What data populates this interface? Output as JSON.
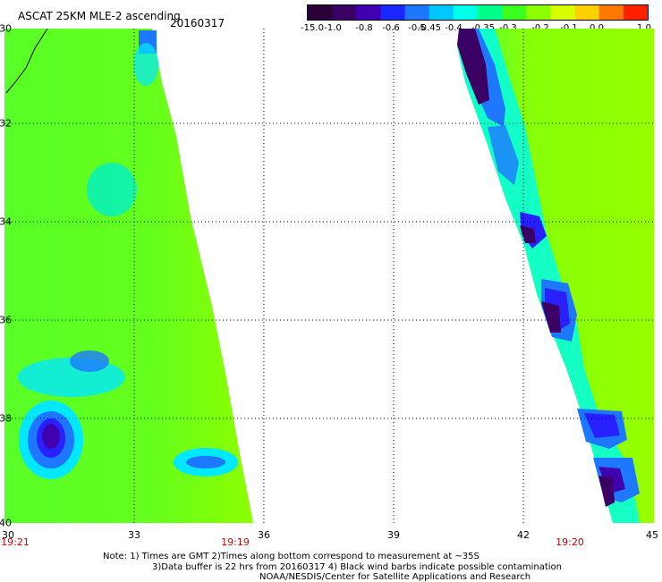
{
  "header": {
    "title": "ASCAT 25KM MLE-2 ascending",
    "date": "20160317"
  },
  "colorbar": {
    "labels": [
      "-15.0",
      "-1.0",
      "-0.8",
      "-0.6",
      "-0.5",
      "-0.45",
      "-0.4",
      "-0.35",
      "-0.3",
      "-0.2",
      "-0.1",
      "0.0",
      "1.0"
    ],
    "colors": [
      "#2a0038",
      "#3a0064",
      "#4000b0",
      "#1a28ff",
      "#1e78ff",
      "#00c8ff",
      "#00ffe8",
      "#00ff8a",
      "#3cff20",
      "#8cff00",
      "#d8ff00",
      "#ffd000",
      "#ff7800",
      "#ff2000"
    ]
  },
  "axes": {
    "y_labels": [
      "-30",
      "-32",
      "-34",
      "-36",
      "-38",
      "-40"
    ],
    "x_labels": [
      "30",
      "33",
      "36",
      "39",
      "42",
      "45"
    ],
    "time_labels": [
      "19:21",
      "19:19",
      "19:20"
    ]
  },
  "notes": {
    "line1": "Note: 1) Times are GMT 2)Times along bottom correspond to measurement at ~35S",
    "line2": "3)Data buffer is 22 hrs from 20160317 4) Black wind barbs indicate possible contamination",
    "line3": "NOAA/NESDIS/Center for Satellite Applications and Research"
  }
}
